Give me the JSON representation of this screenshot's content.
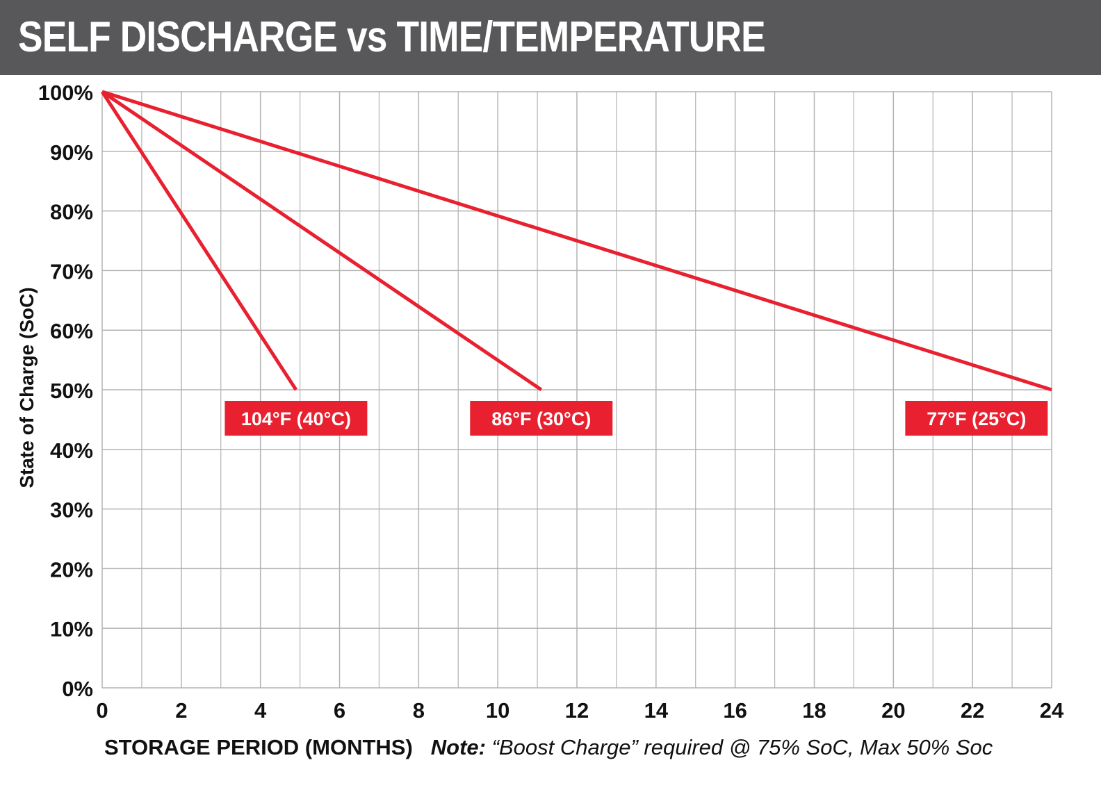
{
  "title": "SELF DISCHARGE vs TIME/TEMPERATURE",
  "note": {
    "lead": "Note:",
    "text": " “Boost Charge” required @ 75% SoC, Max 50% Soc"
  },
  "colors": {
    "header": "#58585a",
    "series": "#e8202f",
    "grid": "#b3b3b3",
    "label_text": "#ffffff"
  },
  "chart_data": {
    "type": "line",
    "xlabel": "STORAGE PERIOD (MONTHS)",
    "ylabel": "State of Charge (SoC)",
    "xlim": [
      0,
      24
    ],
    "ylim": [
      0,
      100
    ],
    "x_ticks": [
      0,
      2,
      4,
      6,
      8,
      10,
      12,
      14,
      16,
      18,
      20,
      22,
      24
    ],
    "x_tick_labels": [
      "0",
      "2",
      "4",
      "6",
      "8",
      "10",
      "12",
      "14",
      "16",
      "18",
      "20",
      "22",
      "24"
    ],
    "y_ticks": [
      0,
      10,
      20,
      30,
      40,
      50,
      60,
      70,
      80,
      90,
      100
    ],
    "y_tick_labels": [
      "0%",
      "10%",
      "20%",
      "30%",
      "40%",
      "50%",
      "60%",
      "70%",
      "80%",
      "90%",
      "100%"
    ],
    "grid": true,
    "series": [
      {
        "name": "104°F (40°C)",
        "x": [
          0,
          4.9
        ],
        "y": [
          100,
          50
        ],
        "color": "#e8202f"
      },
      {
        "name": "86°F (30°C)",
        "x": [
          0,
          11.1
        ],
        "y": [
          100,
          50
        ],
        "color": "#e8202f"
      },
      {
        "name": "77°F (25°C)",
        "x": [
          0,
          24
        ],
        "y": [
          100,
          50
        ],
        "color": "#e8202f"
      }
    ]
  }
}
